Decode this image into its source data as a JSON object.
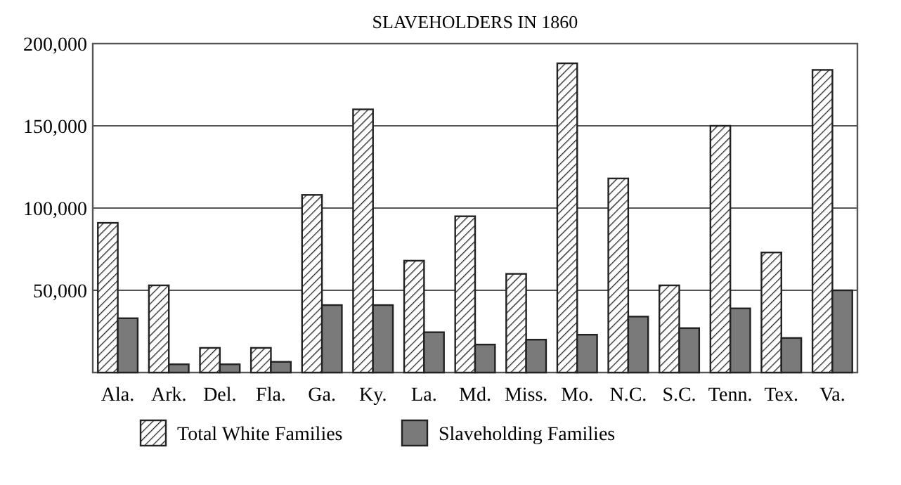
{
  "chart_data": {
    "type": "bar",
    "title": "SLAVEHOLDERS IN 1860",
    "categories": [
      "Ala.",
      "Ark.",
      "Del.",
      "Fla.",
      "Ga.",
      "Ky.",
      "La.",
      "Md.",
      "Miss.",
      "Mo.",
      "N.C.",
      "S.C.",
      "Tenn.",
      "Tex.",
      "Va."
    ],
    "series": [
      {
        "name": "Total White Families",
        "color": "#222222",
        "values": [
          91000,
          53000,
          15000,
          15000,
          108000,
          160000,
          68000,
          95000,
          60000,
          188000,
          118000,
          53000,
          150000,
          73000,
          184000
        ]
      },
      {
        "name": "Slaveholding Families",
        "color": "#7a7a7a",
        "values": [
          33000,
          5000,
          5000,
          6500,
          41000,
          41000,
          24500,
          17000,
          20000,
          23000,
          34000,
          27000,
          39000,
          21000,
          50000
        ]
      }
    ],
    "ylim": [
      0,
      200000
    ],
    "yticks": [
      {
        "value": 50000,
        "label": "50,000"
      },
      {
        "value": 100000,
        "label": "100,000"
      },
      {
        "value": 150000,
        "label": "150,000"
      },
      {
        "value": 200000,
        "label": "200,000"
      }
    ],
    "grid": "y",
    "legend": "bottom"
  }
}
